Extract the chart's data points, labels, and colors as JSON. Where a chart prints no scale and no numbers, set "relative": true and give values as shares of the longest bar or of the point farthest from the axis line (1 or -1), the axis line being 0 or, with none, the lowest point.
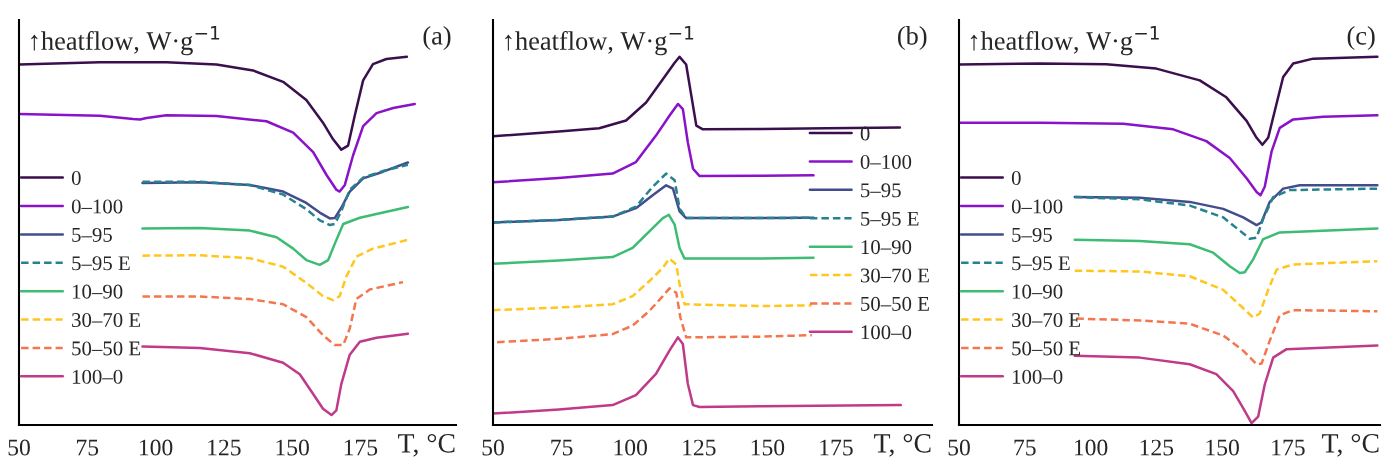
{
  "chart_data": [
    {
      "type": "line",
      "title": "(a)",
      "ylabel": "↑heatflow, W·g$^{−1}$",
      "xlabel": "T, °C",
      "relative": true,
      "xlim": [
        50,
        210
      ],
      "xticks": [
        50,
        75,
        100,
        125,
        150,
        175
      ],
      "grid": false,
      "legend": "left",
      "marker": "none",
      "series": [
        {
          "name": "0",
          "color": "#3b0f4d",
          "line_style": "solid",
          "x": [
            50,
            79.6,
            104,
            122.3,
            135.7,
            146.7,
            155.2,
            161.3,
            165,
            168,
            170.5,
            172.9,
            176,
            179.6,
            184.5,
            192
          ],
          "values": [
            0.979,
            0.985,
            0.985,
            0.979,
            0.963,
            0.932,
            0.883,
            0.821,
            0.776,
            0.748,
            0.759,
            0.839,
            0.936,
            0.98,
            0.994,
            1.0
          ]
        },
        {
          "name": "0–100",
          "color": "#8a12c8",
          "line_style": "solid",
          "x": [
            50,
            79.6,
            91.8,
            94.3,
            96.7,
            104,
            122.3,
            140.6,
            150.4,
            157.7,
            162.6,
            166.2,
            167.4,
            169.3,
            172.3,
            176,
            180.9,
            187,
            194.9
          ],
          "values": [
            0.845,
            0.84,
            0.831,
            0.83,
            0.834,
            0.841,
            0.839,
            0.825,
            0.794,
            0.741,
            0.679,
            0.639,
            0.634,
            0.652,
            0.732,
            0.812,
            0.847,
            0.861,
            0.872
          ]
        },
        {
          "name": "5–95",
          "color": "#444d8c",
          "line_style": "solid",
          "x": [
            95.2,
            116.2,
            134.5,
            146.7,
            155.2,
            160.1,
            163.8,
            165.6,
            168,
            171.1,
            176,
            183.3,
            192.4
          ],
          "values": [
            0.657,
            0.659,
            0.652,
            0.634,
            0.603,
            0.577,
            0.561,
            0.562,
            0.59,
            0.634,
            0.67,
            0.688,
            0.713
          ]
        },
        {
          "name": "5–95 E",
          "color": "#26828e",
          "line_style": "dashed",
          "x": [
            95.2,
            116.2,
            134.5,
            146.7,
            155.2,
            160.1,
            163.8,
            165.6,
            168,
            171.1,
            176,
            183.3,
            192.4
          ],
          "values": [
            0.661,
            0.661,
            0.652,
            0.626,
            0.586,
            0.556,
            0.543,
            0.546,
            0.581,
            0.639,
            0.672,
            0.69,
            0.707
          ]
        },
        {
          "name": "10–90",
          "color": "#3dbc74",
          "line_style": "solid",
          "x": [
            95.2,
            116.2,
            134.5,
            144.3,
            150.4,
            155.2,
            160.1,
            163.2,
            165.6,
            168.7,
            174.8,
            183.3,
            192.4
          ],
          "values": [
            0.534,
            0.535,
            0.528,
            0.51,
            0.479,
            0.448,
            0.435,
            0.448,
            0.492,
            0.546,
            0.563,
            0.577,
            0.592
          ]
        },
        {
          "name": "30–70 E",
          "color": "#ffc61e",
          "line_style": "dashed",
          "x": [
            95.2,
            116.2,
            134.5,
            146.7,
            155.2,
            161.3,
            165,
            167.4,
            169.9,
            173.5,
            179.6,
            192.4
          ],
          "values": [
            0.46,
            0.461,
            0.453,
            0.43,
            0.386,
            0.35,
            0.339,
            0.35,
            0.404,
            0.457,
            0.479,
            0.503
          ]
        },
        {
          "name": "50–50 E",
          "color": "#f4764f",
          "line_style": "dashed",
          "x": [
            95.2,
            116.2,
            134.5,
            146.7,
            155.2,
            161.3,
            165.6,
            168.7,
            171.1,
            173.5,
            178.4,
            190.6
          ],
          "values": [
            0.349,
            0.349,
            0.342,
            0.328,
            0.293,
            0.244,
            0.217,
            0.217,
            0.262,
            0.342,
            0.368,
            0.388
          ]
        },
        {
          "name": "100–0",
          "color": "#c03a8a",
          "line_style": "solid",
          "x": [
            95.2,
            116.2,
            134.5,
            146.7,
            152.8,
            157.7,
            161.3,
            164.4,
            166.2,
            168,
            171.1,
            174.8,
            180.9,
            192.4
          ],
          "values": [
            0.213,
            0.209,
            0.195,
            0.169,
            0.138,
            0.084,
            0.044,
            0.027,
            0.04,
            0.111,
            0.191,
            0.226,
            0.237,
            0.248
          ]
        }
      ]
    },
    {
      "type": "line",
      "title": "(b)",
      "ylabel": "↑heatflow, W·g$^{−1}$",
      "xlabel": "T, °C",
      "relative": true,
      "xlim": [
        50,
        210
      ],
      "xticks": [
        50,
        75,
        100,
        125,
        150,
        175
      ],
      "grid": false,
      "legend": "right",
      "marker": "none",
      "series": [
        {
          "name": "0",
          "color": "#3b0f4d",
          "line_style": "solid",
          "x": [
            50,
            74,
            88.7,
            98.5,
            105.8,
            111.9,
            116.2,
            118,
            120.4,
            122.3,
            124.1,
            126.5,
            147.3,
            171.7,
            198.3
          ],
          "values": [
            0.784,
            0.797,
            0.806,
            0.827,
            0.876,
            0.939,
            0.984,
            1.0,
            0.979,
            0.894,
            0.813,
            0.803,
            0.804,
            0.806,
            0.808
          ]
        },
        {
          "name": "0–100",
          "color": "#8a12c8",
          "line_style": "solid",
          "x": [
            50,
            74,
            93.6,
            102.1,
            109.4,
            114.3,
            117.4,
            119.2,
            121,
            122.9,
            125.3,
            147.3,
            166.8
          ],
          "values": [
            0.659,
            0.671,
            0.683,
            0.714,
            0.786,
            0.84,
            0.872,
            0.858,
            0.768,
            0.696,
            0.676,
            0.677,
            0.678
          ]
        },
        {
          "name": "5–95",
          "color": "#444d8c",
          "line_style": "solid",
          "x": [
            50,
            74,
            93.6,
            102.1,
            108.2,
            113.1,
            115.6,
            118,
            120.4,
            147.3,
            166.8
          ],
          "values": [
            0.55,
            0.557,
            0.566,
            0.589,
            0.624,
            0.651,
            0.642,
            0.58,
            0.562,
            0.562,
            0.563
          ]
        },
        {
          "name": "5–95 E",
          "color": "#26828e",
          "line_style": "dashed",
          "x": [
            50,
            74,
            93.6,
            102.1,
            108.2,
            113.1,
            116.2,
            118,
            120.4,
            147.3,
            166.8
          ],
          "values": [
            0.55,
            0.557,
            0.566,
            0.593,
            0.647,
            0.683,
            0.665,
            0.588,
            0.562,
            0.562,
            0.563
          ]
        },
        {
          "name": "10–90",
          "color": "#3dbc74",
          "line_style": "solid",
          "x": [
            50,
            74,
            93.6,
            100.9,
            107,
            111.9,
            114.1,
            116.2,
            118,
            119.8,
            147.3,
            166.8
          ],
          "values": [
            0.438,
            0.447,
            0.456,
            0.481,
            0.526,
            0.562,
            0.571,
            0.544,
            0.481,
            0.452,
            0.452,
            0.454
          ]
        },
        {
          "name": "30–70 E",
          "color": "#ffc61e",
          "line_style": "dashed",
          "x": [
            50,
            74,
            93.6,
            100.9,
            107,
            111.9,
            114.3,
            116.8,
            118,
            119.8,
            147.3,
            166.2
          ],
          "values": [
            0.312,
            0.319,
            0.328,
            0.35,
            0.391,
            0.427,
            0.452,
            0.436,
            0.382,
            0.328,
            0.323,
            0.325
          ]
        },
        {
          "name": "50–50 E",
          "color": "#f4764f",
          "line_style": "dashed",
          "x": [
            51.5,
            74,
            93.6,
            100.9,
            107,
            111.9,
            114.3,
            116.8,
            118.3,
            120.4,
            147.3,
            166.2
          ],
          "values": [
            0.225,
            0.234,
            0.247,
            0.27,
            0.31,
            0.35,
            0.371,
            0.359,
            0.292,
            0.238,
            0.24,
            0.244
          ]
        },
        {
          "name": "100–0",
          "color": "#c03a8a",
          "line_style": "solid",
          "x": [
            50,
            74,
            93.6,
            102.1,
            109.4,
            114.3,
            117.4,
            119.2,
            121,
            122.9,
            125.3,
            147.3,
            198.6
          ],
          "values": [
            0.031,
            0.042,
            0.054,
            0.081,
            0.139,
            0.202,
            0.238,
            0.22,
            0.112,
            0.054,
            0.049,
            0.051,
            0.054
          ]
        }
      ]
    },
    {
      "type": "line",
      "title": "(c)",
      "ylabel": "↑heatflow, W·g$^{−1}$",
      "xlabel": "T, °C",
      "relative": true,
      "xlim": [
        50,
        210
      ],
      "xticks": [
        50,
        75,
        100,
        125,
        150,
        175
      ],
      "grid": false,
      "legend": "left",
      "marker": "none",
      "series": [
        {
          "name": "0",
          "color": "#3b0f4d",
          "line_style": "solid",
          "x": [
            50,
            80.7,
            106,
            125,
            141.5,
            151.6,
            159.3,
            163.1,
            165.3,
            167.5,
            170,
            173.2,
            177,
            184.6,
            209
          ],
          "values": [
            0.979,
            0.982,
            0.98,
            0.968,
            0.936,
            0.89,
            0.826,
            0.78,
            0.761,
            0.78,
            0.853,
            0.945,
            0.982,
            0.995,
            1.0
          ]
        },
        {
          "name": "0–100",
          "color": "#8a12c8",
          "line_style": "solid",
          "x": [
            50,
            80.7,
            112.4,
            131.4,
            144,
            152.9,
            159.3,
            163.1,
            164.6,
            166.2,
            168.8,
            171.9,
            177,
            188.4,
            209
          ],
          "values": [
            0.821,
            0.821,
            0.818,
            0.803,
            0.771,
            0.725,
            0.67,
            0.633,
            0.624,
            0.647,
            0.743,
            0.807,
            0.83,
            0.837,
            0.841
          ]
        },
        {
          "name": "5–95",
          "color": "#444d8c",
          "line_style": "solid",
          "x": [
            94,
            118.7,
            137.7,
            150.4,
            158,
            163.1,
            164.9,
            168.1,
            173.2,
            179.5,
            209
          ],
          "values": [
            0.619,
            0.617,
            0.606,
            0.587,
            0.564,
            0.543,
            0.55,
            0.606,
            0.642,
            0.651,
            0.651
          ]
        },
        {
          "name": "5–95 E",
          "color": "#26828e",
          "line_style": "dashed",
          "x": [
            94,
            118.7,
            137.7,
            150.4,
            156.7,
            160.5,
            163.1,
            165.6,
            169.4,
            175.7,
            209
          ],
          "values": [
            0.619,
            0.613,
            0.596,
            0.564,
            0.528,
            0.506,
            0.509,
            0.56,
            0.619,
            0.638,
            0.642
          ]
        },
        {
          "name": "10–90",
          "color": "#3dbc74",
          "line_style": "solid",
          "x": [
            94,
            118.7,
            137.7,
            146.6,
            152.9,
            156.7,
            158.6,
            161.8,
            165.6,
            171.9,
            209
          ],
          "values": [
            0.503,
            0.5,
            0.491,
            0.468,
            0.431,
            0.413,
            0.415,
            0.45,
            0.505,
            0.523,
            0.534
          ]
        },
        {
          "name": "30–70 E",
          "color": "#ffc61e",
          "line_style": "dashed",
          "x": [
            94,
            118.7,
            137.7,
            150.4,
            156.7,
            161.8,
            164.3,
            167.5,
            170.7,
            177,
            209
          ],
          "values": [
            0.419,
            0.417,
            0.404,
            0.367,
            0.326,
            0.292,
            0.303,
            0.367,
            0.422,
            0.436,
            0.445
          ]
        },
        {
          "name": "50–50 E",
          "color": "#f4764f",
          "line_style": "dashed",
          "x": [
            94.6,
            118.7,
            137.7,
            150.4,
            158,
            163.1,
            165,
            168.1,
            171.9,
            177,
            209
          ],
          "values": [
            0.289,
            0.284,
            0.275,
            0.243,
            0.202,
            0.165,
            0.167,
            0.229,
            0.298,
            0.312,
            0.309
          ]
        },
        {
          "name": "100–0",
          "color": "#c03a8a",
          "line_style": "solid",
          "x": [
            94,
            118.7,
            137.7,
            147.8,
            154.2,
            158,
            161.2,
            163.7,
            166.2,
            169.4,
            174.5,
            209
          ],
          "values": [
            0.188,
            0.183,
            0.165,
            0.138,
            0.092,
            0.046,
            0.005,
            0.023,
            0.11,
            0.183,
            0.206,
            0.216
          ]
        }
      ]
    }
  ]
}
